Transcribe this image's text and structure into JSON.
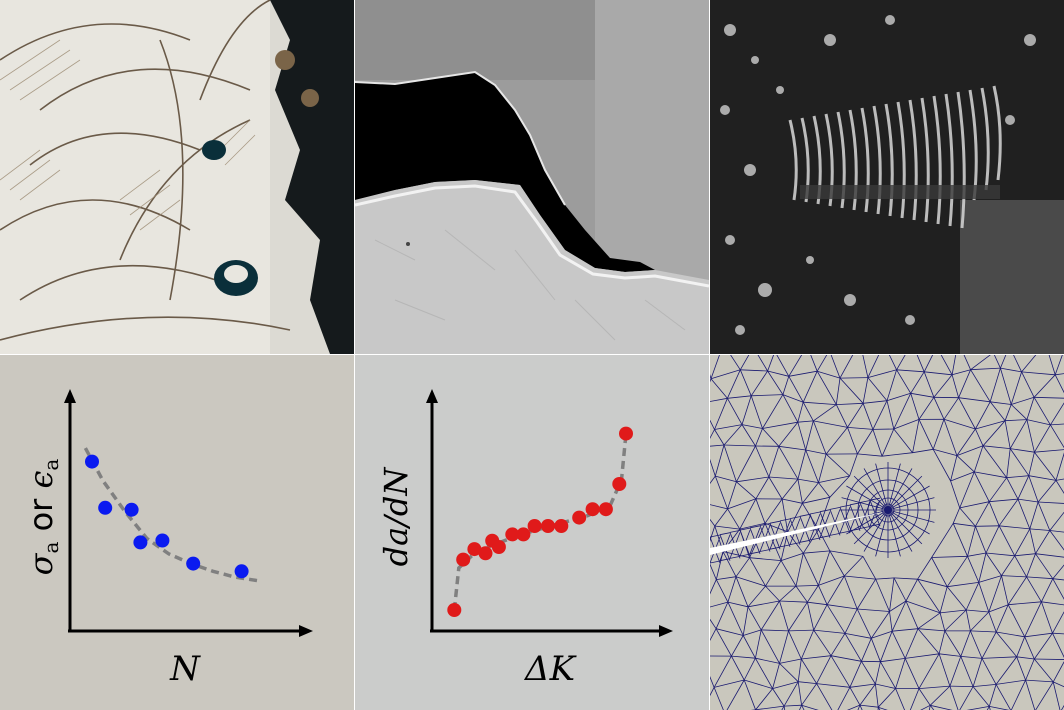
{
  "figure": {
    "panels": [
      {
        "id": "micrograph-optical",
        "kind": "image"
      },
      {
        "id": "micrograph-crack-sem",
        "kind": "image"
      },
      {
        "id": "micrograph-striations",
        "kind": "image"
      },
      {
        "id": "sn-curve",
        "kind": "chart"
      },
      {
        "id": "crack-growth-curve",
        "kind": "chart"
      },
      {
        "id": "fe-mesh",
        "kind": "image"
      }
    ]
  },
  "chart_data": [
    {
      "type": "scatter",
      "xlabel": "N",
      "ylabel_parts": {
        "sigma": "σ",
        "sub_a1": "a",
        "or": " or ",
        "eps": "ϵ",
        "sub_a2": "a"
      },
      "points": [
        [
          1.0,
          8.8
        ],
        [
          1.6,
          6.4
        ],
        [
          2.8,
          6.3
        ],
        [
          3.2,
          4.6
        ],
        [
          4.2,
          4.7
        ],
        [
          5.6,
          3.5
        ],
        [
          7.8,
          3.1
        ]
      ],
      "trend": [
        [
          0.7,
          9.5
        ],
        [
          1.5,
          7.8
        ],
        [
          2.5,
          6.2
        ],
        [
          3.5,
          4.8
        ],
        [
          4.5,
          4.0
        ],
        [
          5.5,
          3.5
        ],
        [
          6.5,
          3.1
        ],
        [
          7.5,
          2.8
        ],
        [
          8.6,
          2.6
        ]
      ],
      "point_color": "#0a1af0",
      "trend_color": "#808080",
      "xlim": [
        0,
        10
      ],
      "ylim": [
        0,
        12
      ]
    },
    {
      "type": "scatter",
      "xlabel": "ΔK",
      "ylabel": "da/dN",
      "points": [
        [
          1.0,
          1.0
        ],
        [
          1.4,
          3.4
        ],
        [
          1.9,
          3.9
        ],
        [
          2.4,
          3.7
        ],
        [
          2.7,
          4.3
        ],
        [
          3.0,
          4.0
        ],
        [
          3.6,
          4.6
        ],
        [
          4.1,
          4.6
        ],
        [
          4.6,
          5.0
        ],
        [
          5.2,
          5.0
        ],
        [
          5.8,
          5.0
        ],
        [
          6.6,
          5.4
        ],
        [
          7.2,
          5.8
        ],
        [
          7.8,
          5.8
        ],
        [
          8.4,
          7.0
        ],
        [
          8.7,
          9.4
        ]
      ],
      "trend": [
        [
          1.0,
          1.0
        ],
        [
          1.2,
          3.0
        ],
        [
          2.0,
          3.8
        ],
        [
          3.0,
          4.2
        ],
        [
          4.0,
          4.6
        ],
        [
          5.0,
          4.9
        ],
        [
          6.0,
          5.2
        ],
        [
          7.0,
          5.5
        ],
        [
          8.0,
          6.0
        ],
        [
          8.5,
          7.2
        ],
        [
          8.7,
          9.4
        ]
      ],
      "point_color": "#e01a1a",
      "trend_color": "#808080",
      "xlim": [
        0,
        10
      ],
      "ylim": [
        0,
        11
      ]
    }
  ]
}
